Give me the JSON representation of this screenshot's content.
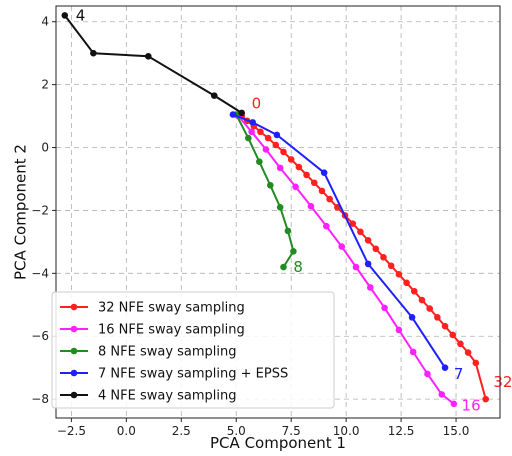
{
  "chart_data": {
    "type": "line",
    "xlabel": "PCA Component 1",
    "ylabel": "PCA Component 2",
    "xlim": [
      -3.2,
      17.0
    ],
    "ylim": [
      -8.6,
      4.5
    ],
    "xticks": [
      -2.5,
      0.0,
      2.5,
      5.0,
      7.5,
      10.0,
      12.5,
      15.0
    ],
    "xtick_labels": [
      "−2.5",
      "0.0",
      "2.5",
      "5.0",
      "7.5",
      "10.0",
      "12.5",
      "15.0"
    ],
    "yticks": [
      -8,
      -6,
      -4,
      -2,
      0,
      2,
      4
    ],
    "ytick_labels": [
      "−8",
      "−6",
      "−4",
      "−2",
      "0",
      "2",
      "4"
    ],
    "grid": true,
    "grid_style": "dashed",
    "legend_position": "lower-left",
    "series": [
      {
        "name": "32 NFE sway sampling",
        "color": "#ff2020",
        "x": [
          5.25,
          5.5,
          5.8,
          6.1,
          6.45,
          6.8,
          7.15,
          7.5,
          7.85,
          8.2,
          8.55,
          8.9,
          9.25,
          9.6,
          9.95,
          10.3,
          10.65,
          11.0,
          11.35,
          11.7,
          12.05,
          12.4,
          12.75,
          13.1,
          13.45,
          13.8,
          14.15,
          14.5,
          14.85,
          15.2,
          15.55,
          15.9,
          16.35
        ],
        "y": [
          1.0,
          0.85,
          0.68,
          0.5,
          0.3,
          0.08,
          -0.14,
          -0.38,
          -0.62,
          -0.87,
          -1.12,
          -1.38,
          -1.64,
          -1.9,
          -2.16,
          -2.42,
          -2.68,
          -2.95,
          -3.22,
          -3.49,
          -3.76,
          -4.03,
          -4.3,
          -4.57,
          -4.85,
          -5.12,
          -5.4,
          -5.68,
          -5.96,
          -6.24,
          -6.52,
          -6.85,
          -8.0
        ]
      },
      {
        "name": "16 NFE sway sampling",
        "color": "#ff20ff",
        "x": [
          5.1,
          5.7,
          6.35,
          7.0,
          7.7,
          8.4,
          9.1,
          9.8,
          10.45,
          11.1,
          11.75,
          12.4,
          13.05,
          13.7,
          14.35,
          14.9
        ],
        "y": [
          1.0,
          0.5,
          -0.06,
          -0.65,
          -1.25,
          -1.87,
          -2.5,
          -3.15,
          -3.8,
          -4.45,
          -5.1,
          -5.8,
          -6.5,
          -7.2,
          -7.85,
          -8.15
        ]
      },
      {
        "name": "8 NFE sway sampling",
        "color": "#228b22",
        "x": [
          5.0,
          5.55,
          6.05,
          6.55,
          7.0,
          7.35,
          7.6,
          7.15
        ],
        "y": [
          1.05,
          0.3,
          -0.45,
          -1.2,
          -1.9,
          -2.65,
          -3.3,
          -3.8
        ]
      },
      {
        "name": "7 NFE sway sampling + EPSS",
        "color": "#2020ff",
        "x": [
          4.85,
          5.75,
          6.85,
          9.0,
          11.0,
          13.0,
          14.5
        ],
        "y": [
          1.05,
          0.8,
          0.4,
          -0.8,
          -3.7,
          -5.4,
          -7.0
        ]
      },
      {
        "name": "4 NFE sway sampling",
        "color": "#111111",
        "x": [
          -2.8,
          -1.5,
          1.0,
          4.0,
          5.25
        ],
        "y": [
          4.2,
          3.0,
          2.9,
          1.65,
          1.1
        ]
      }
    ],
    "annotations": [
      {
        "text": "0",
        "x": 5.7,
        "y": 1.4,
        "color": "#ff2020"
      },
      {
        "text": "4",
        "x": -2.3,
        "y": 4.2,
        "color": "#111111"
      },
      {
        "text": "8",
        "x": 7.6,
        "y": -3.8,
        "color": "#228b22"
      },
      {
        "text": "7",
        "x": 14.9,
        "y": -7.2,
        "color": "#2020ff"
      },
      {
        "text": "16",
        "x": 15.25,
        "y": -8.2,
        "color": "#ff20ff"
      },
      {
        "text": "32",
        "x": 16.7,
        "y": -7.45,
        "color": "#ff2020"
      }
    ]
  }
}
